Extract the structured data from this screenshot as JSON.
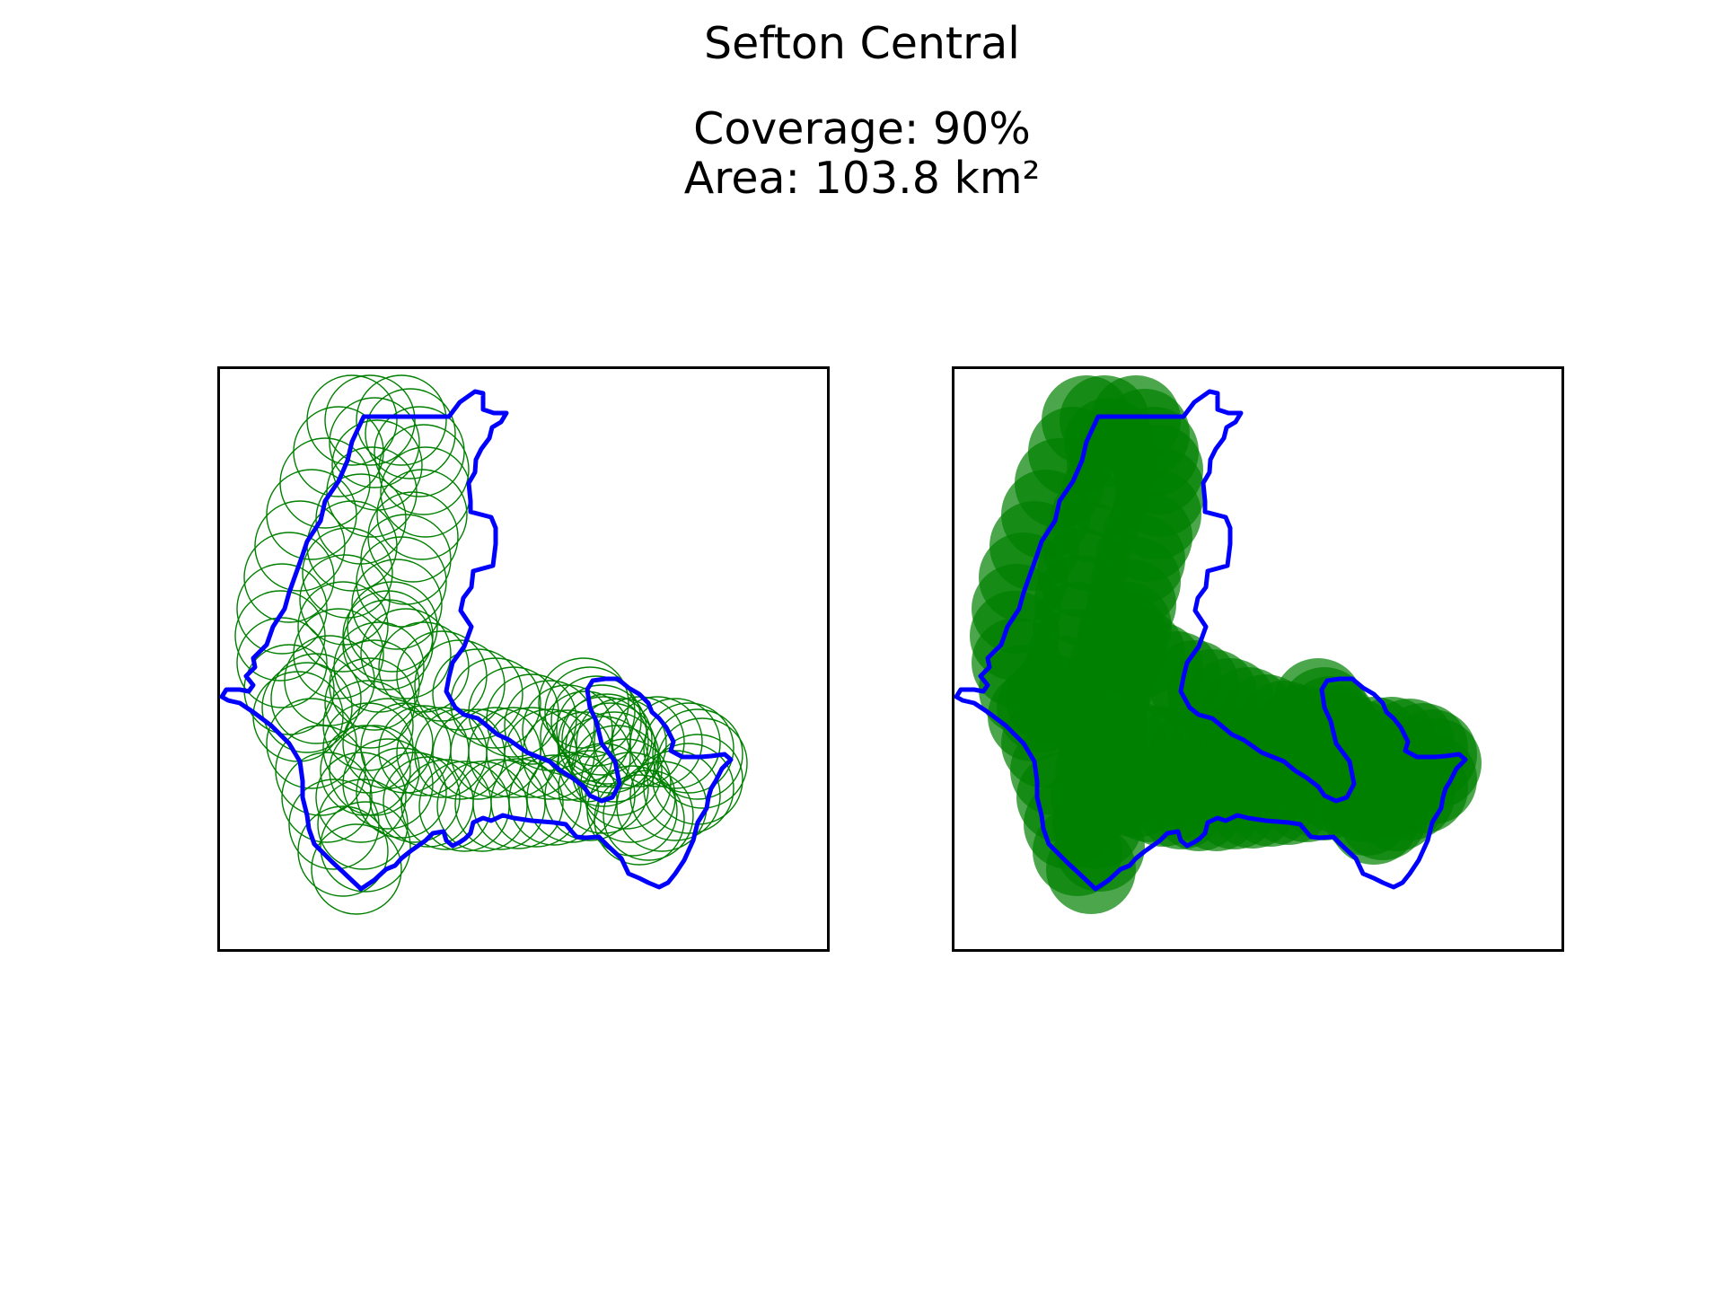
{
  "figure": {
    "title": "Sefton Central",
    "coverage": "Coverage: 90%",
    "area": "Area: 103.8 km²"
  },
  "colors": {
    "boundary": "#0000ff",
    "coverage": "#008000",
    "frame": "#000000"
  },
  "map_data": {
    "region_name": "Sefton Central",
    "coverage_percent": 90,
    "area_km2": 103.8,
    "panels": [
      {
        "name": "coverage-circle-outlines",
        "style": "outline"
      },
      {
        "name": "coverage-circle-filled",
        "style": "filled"
      }
    ]
  }
}
